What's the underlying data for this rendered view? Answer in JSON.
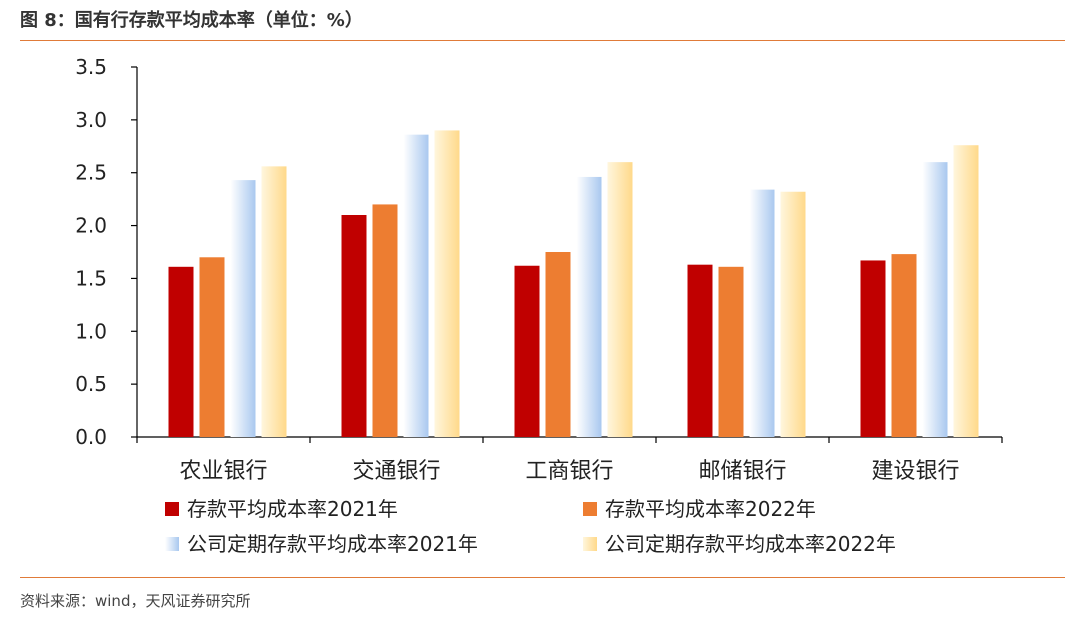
{
  "header": {
    "title": "图 8：国有行存款平均成本率（单位：%）"
  },
  "footer": {
    "source": "资料来源：wind，天风证券研究所"
  },
  "colors": {
    "accent_rule": "#e07b39"
  },
  "chart_data": {
    "type": "bar",
    "categories": [
      "农业银行",
      "交通银行",
      "工商银行",
      "邮储银行",
      "建设银行"
    ],
    "series": [
      {
        "name": "存款平均成本率2021年",
        "values": [
          1.61,
          2.1,
          1.62,
          1.63,
          1.67
        ],
        "color": "#c00000"
      },
      {
        "name": "存款平均成本率2022年",
        "values": [
          1.7,
          2.2,
          1.75,
          1.61,
          1.73
        ],
        "color": "#ed7d31"
      },
      {
        "name": "公司定期存款平均成本率2021年",
        "values": [
          2.43,
          2.86,
          2.46,
          2.34,
          2.6
        ],
        "color": "#bdd7ee"
      },
      {
        "name": "公司定期存款平均成本率2022年",
        "values": [
          2.56,
          2.9,
          2.6,
          2.32,
          2.76
        ],
        "color": "#ffe699"
      }
    ],
    "ylim": [
      0,
      3.5
    ],
    "yticks": [
      "0.0",
      "0.5",
      "1.0",
      "1.5",
      "2.0",
      "2.5",
      "3.0",
      "3.5"
    ],
    "grid": false,
    "legend_position": "bottom"
  }
}
